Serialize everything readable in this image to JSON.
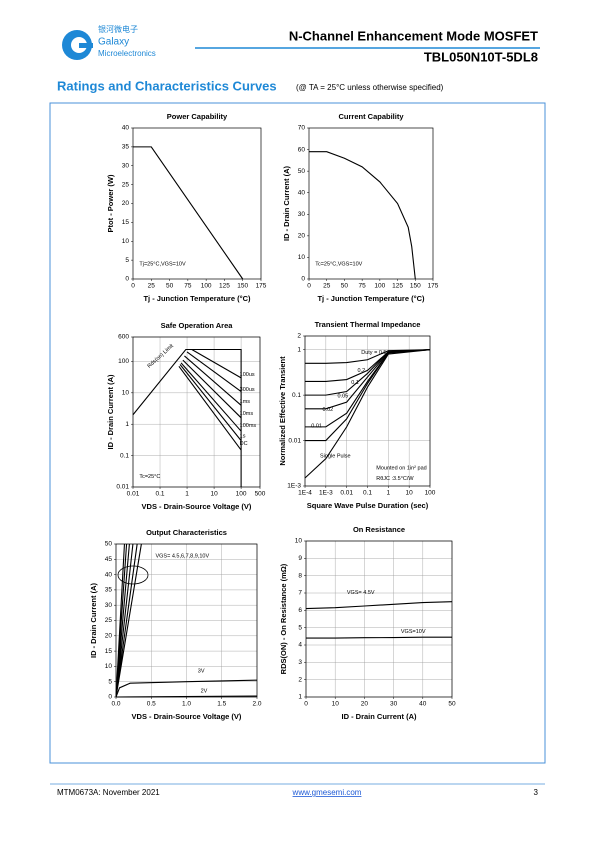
{
  "header": {
    "logo_cn": "银河微电子",
    "logo_name": "Galaxy",
    "logo_sub": "Microelectronics",
    "title": "N-Channel Enhancement Mode MOSFET",
    "part": "TBL050N10T-5DL8"
  },
  "section": {
    "title": "Ratings and Characteristics Curves",
    "note": "(@ TA = 25°C unless otherwise specified)"
  },
  "footer": {
    "doc": "MTM0673A: November 2021",
    "url": "www.gmesemi.com",
    "page": "3"
  },
  "chart_data": [
    {
      "type": "line",
      "title": "Power Capability",
      "x_label": "Tj - Junction Temperature (°C)",
      "y_label": "Ptot - Power (W)",
      "xlim": [
        0,
        175
      ],
      "xticks": [
        0,
        25,
        50,
        75,
        100,
        125,
        150,
        175
      ],
      "ylim": [
        0,
        40
      ],
      "yticks": [
        0,
        5,
        10,
        15,
        20,
        25,
        30,
        35,
        40
      ],
      "grid": false,
      "annotations": [
        "Tj=25°C,VGS=10V"
      ],
      "series": [
        {
          "color": "#000000",
          "x": [
            0,
            25,
            150
          ],
          "values": [
            35,
            35,
            0
          ]
        }
      ]
    },
    {
      "type": "line",
      "title": "Current Capability",
      "x_label": "Tj - Junction Temperature (°C)",
      "y_label": "ID - Drain Current (A)",
      "xlim": [
        0,
        175
      ],
      "xticks": [
        0,
        25,
        50,
        75,
        100,
        125,
        150,
        175
      ],
      "ylim": [
        0,
        70
      ],
      "yticks": [
        0,
        10,
        20,
        30,
        40,
        50,
        60,
        70
      ],
      "grid": false,
      "annotations": [
        "Tc=25°C,VGS=10V"
      ],
      "series": [
        {
          "color": "#000000",
          "x": [
            0,
            25,
            50,
            75,
            100,
            125,
            140,
            145,
            150
          ],
          "values": [
            59,
            59,
            56,
            52,
            45,
            35,
            24,
            15,
            0
          ]
        }
      ]
    },
    {
      "type": "line",
      "title": "Safe Operation Area",
      "x_label": "VDS - Drain-Source Voltage (V)",
      "y_label": "ID - Drain Current (A)",
      "log_x": true,
      "log_y": true,
      "xlim": [
        0.01,
        500
      ],
      "xticks": [
        0.01,
        0.1,
        1,
        10,
        100,
        500
      ],
      "ylim": [
        0.01,
        600
      ],
      "yticks": [
        0.01,
        0.1,
        1,
        10,
        100,
        600
      ],
      "grid": true,
      "annotations": [
        "Tc=25°C"
      ],
      "series": [
        {
          "name": "Rds(on) Limit",
          "color": "#000000",
          "x": [
            0.01,
            0.9,
            100,
            100
          ],
          "values": [
            2,
            240,
            240,
            0.01
          ]
        },
        {
          "name": "100us",
          "color": "#000000",
          "x": [
            1.5,
            100
          ],
          "values": [
            240,
            30
          ]
        },
        {
          "name": "300us",
          "color": "#000000",
          "x": [
            1,
            100
          ],
          "values": [
            200,
            11
          ]
        },
        {
          "name": "1ms",
          "color": "#000000",
          "x": [
            0.8,
            100
          ],
          "values": [
            150,
            4
          ]
        },
        {
          "name": "10ms",
          "color": "#000000",
          "x": [
            0.7,
            100
          ],
          "values": [
            110,
            1.6
          ]
        },
        {
          "name": "100ms",
          "color": "#000000",
          "x": [
            0.6,
            100
          ],
          "values": [
            90,
            0.6
          ]
        },
        {
          "name": "1s",
          "color": "#000000",
          "x": [
            0.55,
            100
          ],
          "values": [
            80,
            0.3
          ]
        },
        {
          "name": "DC",
          "color": "#000000",
          "x": [
            0.5,
            100
          ],
          "values": [
            70,
            0.15
          ]
        }
      ]
    },
    {
      "type": "line",
      "title": "Transient Thermal Impedance",
      "x_label": "Square Wave Pulse Duration (sec)",
      "y_label": "Normalized Effective Transient",
      "log_x": true,
      "log_y": true,
      "xlim": [
        0.0001,
        100
      ],
      "xticks": [
        {
          "value": 0.0001,
          "label": "1E-4"
        },
        {
          "value": 0.001,
          "label": "1E-3"
        },
        0.01,
        0.1,
        1,
        10,
        100
      ],
      "ylim": [
        0.001,
        2
      ],
      "yticks": [
        {
          "value": 0.001,
          "label": "1E-3"
        },
        0.01,
        0.1,
        1,
        2
      ],
      "grid": true,
      "annotations": [
        "Mounted on 1in² pad",
        "RθJC :3.5°C/W"
      ],
      "series": [
        {
          "name": "Duty = 0.5",
          "color": "#000000",
          "x": [
            0.0001,
            0.001,
            0.01,
            0.1,
            1,
            100
          ],
          "values": [
            0.5,
            0.5,
            0.52,
            0.6,
            0.95,
            1
          ]
        },
        {
          "name": "0.2",
          "color": "#000000",
          "x": [
            0.0001,
            0.001,
            0.01,
            0.1,
            1,
            100
          ],
          "values": [
            0.2,
            0.2,
            0.22,
            0.35,
            0.9,
            1
          ]
        },
        {
          "name": "0.1",
          "color": "#000000",
          "x": [
            0.0001,
            0.001,
            0.01,
            0.1,
            1,
            100
          ],
          "values": [
            0.1,
            0.1,
            0.12,
            0.3,
            0.9,
            1
          ]
        },
        {
          "name": "0.05",
          "color": "#000000",
          "x": [
            0.0001,
            0.001,
            0.01,
            0.1,
            1,
            100
          ],
          "values": [
            0.05,
            0.05,
            0.07,
            0.25,
            0.88,
            1
          ]
        },
        {
          "name": "0.02",
          "color": "#000000",
          "x": [
            0.0001,
            0.001,
            0.01,
            0.1,
            1,
            100
          ],
          "values": [
            0.02,
            0.02,
            0.04,
            0.2,
            0.86,
            1
          ]
        },
        {
          "name": "0.01",
          "color": "#000000",
          "x": [
            0.0001,
            0.001,
            0.01,
            0.1,
            1,
            100
          ],
          "values": [
            0.01,
            0.01,
            0.03,
            0.18,
            0.85,
            1
          ]
        },
        {
          "name": "Single Pulse",
          "color": "#000000",
          "x": [
            0.0001,
            0.001,
            0.01,
            0.1,
            1,
            100
          ],
          "values": [
            0.0015,
            0.004,
            0.02,
            0.15,
            0.8,
            1
          ]
        }
      ]
    },
    {
      "type": "line",
      "title": "Output Characteristics",
      "x_label": "VDS - Drain-Source Voltage (V)",
      "y_label": "ID - Drain Current (A)",
      "xlim": [
        0,
        2
      ],
      "xticks": [
        {
          "value": 0,
          "label": "0.0"
        },
        0.5,
        {
          "value": 1,
          "label": "1.0"
        },
        1.5,
        {
          "value": 2,
          "label": "2.0"
        }
      ],
      "ylim": [
        0,
        50
      ],
      "yticks": [
        0,
        5,
        10,
        15,
        20,
        25,
        30,
        35,
        40,
        45,
        50
      ],
      "grid": true,
      "series": [
        {
          "name": "VGS= 4.5,6,7,8,9,10V",
          "color": "#000000",
          "x": [
            0,
            0.12,
            null,
            0,
            0.15,
            null,
            0,
            0.19,
            null,
            0,
            0.24,
            null,
            0,
            0.3,
            null,
            0,
            0.36
          ],
          "values": [
            0,
            50,
            null,
            0,
            50,
            null,
            0,
            50,
            null,
            0,
            50,
            null,
            0,
            50,
            null,
            0,
            50
          ]
        },
        {
          "name": "3V",
          "color": "#000000",
          "x": [
            0,
            0.05,
            0.2,
            1,
            2
          ],
          "values": [
            0,
            3,
            4.5,
            5,
            5.5
          ]
        },
        {
          "name": "2V",
          "color": "#000000",
          "x": [
            0,
            2
          ],
          "values": [
            0,
            0.3
          ]
        }
      ]
    },
    {
      "type": "line",
      "title": "On Resistance",
      "x_label": "ID - Drain Current (A)",
      "y_label": "RDS(ON) - On Resistance (mΩ)",
      "xlim": [
        0,
        50
      ],
      "xticks": [
        0,
        10,
        20,
        30,
        40,
        50
      ],
      "ylim": [
        1,
        10
      ],
      "yticks": [
        1,
        2,
        3,
        4,
        5,
        6,
        7,
        8,
        9,
        10
      ],
      "grid": true,
      "series": [
        {
          "name": "VGS= 4.5V",
          "color": "#000000",
          "x": [
            0,
            10,
            20,
            30,
            40,
            50
          ],
          "values": [
            6.1,
            6.15,
            6.25,
            6.35,
            6.45,
            6.5
          ]
        },
        {
          "name": "VGS=10V",
          "color": "#000000",
          "x": [
            0,
            10,
            20,
            30,
            40,
            50
          ],
          "values": [
            4.4,
            4.4,
            4.42,
            4.43,
            4.45,
            4.45
          ]
        }
      ]
    }
  ]
}
